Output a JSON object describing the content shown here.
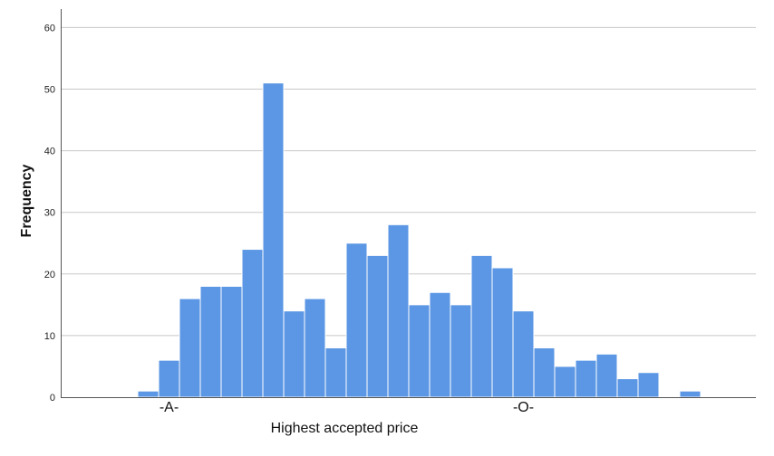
{
  "chart_data": {
    "type": "bar",
    "xlabel": "Highest accepted price",
    "ylabel": "Frequency",
    "ylim": [
      0,
      63
    ],
    "yticks": [
      0,
      10,
      20,
      30,
      40,
      50,
      60
    ],
    "ytick_labels": [
      "0",
      "10",
      "20",
      "30",
      "40",
      "50",
      "60"
    ],
    "x_tick_labels": [
      {
        "text": "-A-",
        "bin": 1
      },
      {
        "text": "-O-",
        "bin": 18
      }
    ],
    "bins": 28,
    "values": [
      1,
      6,
      16,
      18,
      18,
      24,
      51,
      14,
      16,
      8,
      25,
      23,
      28,
      15,
      17,
      15,
      23,
      21,
      14,
      8,
      5,
      6,
      7,
      3,
      4,
      0,
      1,
      0
    ],
    "grid": true,
    "legend": "none",
    "bar_color": "#5b97e4",
    "bar_edge_color": "#ffffff",
    "grid_color": "#c8c8c8",
    "axis_color": "#555555"
  }
}
